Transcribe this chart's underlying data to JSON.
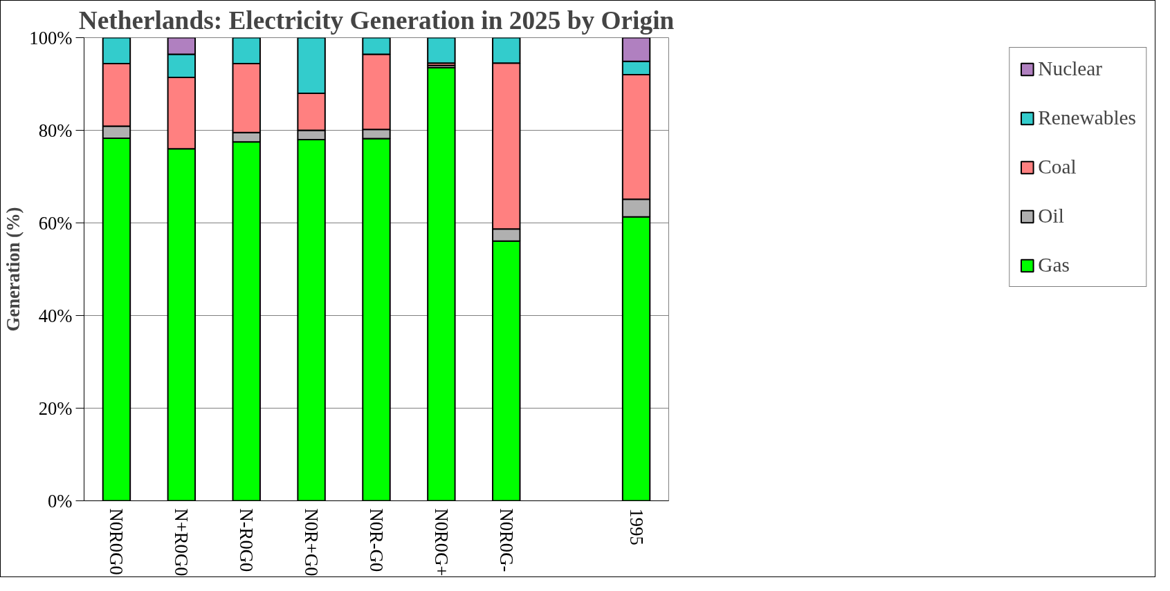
{
  "chart_data": {
    "type": "bar",
    "stacked": true,
    "title": "Netherlands: Electricity Generation in 2025 by Origin",
    "ylabel": "Generation (%)",
    "categories": [
      "N0R0G0",
      "N+R0G0",
      "N-R0G0",
      "N0R+G0",
      "N0R-G0",
      "N0R0G+",
      "N0R0G-",
      null,
      "1995"
    ],
    "series": [
      {
        "name": "Gas",
        "color": "#00ff00",
        "values": [
          78.3,
          76.0,
          77.5,
          78.0,
          78.2,
          93.5,
          56.1,
          null,
          61.3
        ]
      },
      {
        "name": "Oil",
        "color": "#b0b0b0",
        "values": [
          2.6,
          null,
          2.0,
          2.0,
          2.0,
          0.5,
          2.6,
          null,
          3.8
        ]
      },
      {
        "name": "Coal",
        "color": "#ff8080",
        "values": [
          13.5,
          15.4,
          14.9,
          8.0,
          16.2,
          0.5,
          35.8,
          null,
          26.9
        ]
      },
      {
        "name": "Renewables",
        "color": "#33cccc",
        "values": [
          5.6,
          5.0,
          5.6,
          12.0,
          3.6,
          5.5,
          5.5,
          null,
          2.9
        ]
      },
      {
        "name": "Nuclear",
        "color": "#b080c0",
        "values": [
          null,
          3.6,
          null,
          null,
          null,
          null,
          null,
          null,
          5.1
        ]
      }
    ],
    "ylim": [
      0,
      100
    ],
    "yticks": [
      {
        "value": 0,
        "label": "0%"
      },
      {
        "value": 20,
        "label": "20%"
      },
      {
        "value": 40,
        "label": "40%"
      },
      {
        "value": 60,
        "label": "60%"
      },
      {
        "value": 80,
        "label": "80%"
      },
      {
        "value": 100,
        "label": "100%"
      }
    ],
    "grid": "y",
    "legend": "right"
  }
}
